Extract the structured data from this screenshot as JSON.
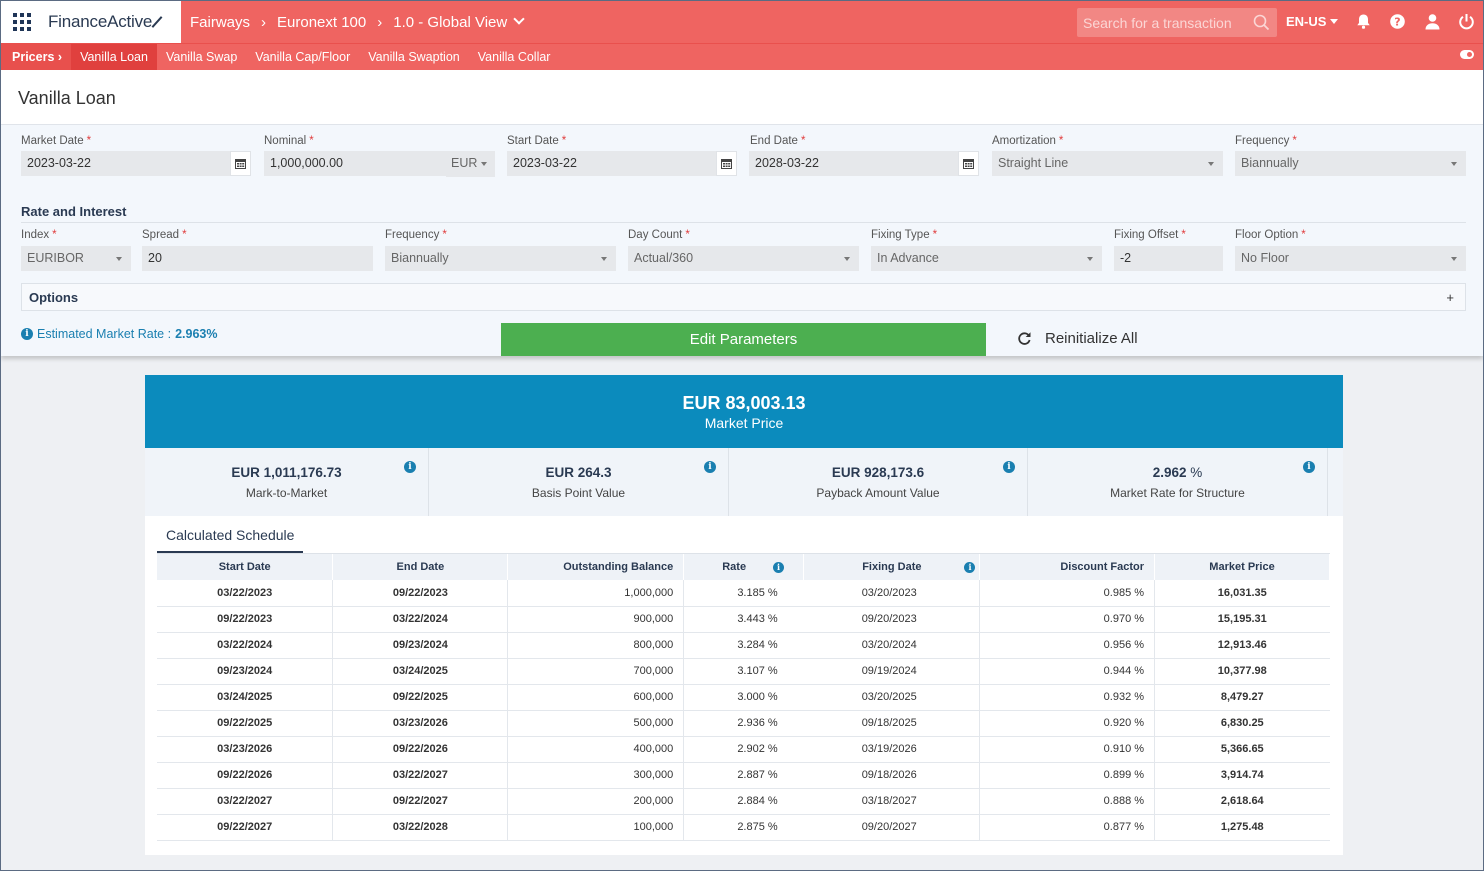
{
  "header": {
    "brand": "FinanceActive",
    "breadcrumbs": [
      "Fairways",
      "Euronext 100",
      "1.0 - Global View"
    ],
    "search_placeholder": "Search for a transaction",
    "language": "EN-US"
  },
  "subnav": {
    "section": "Pricers",
    "items": [
      "Vanilla Loan",
      "Vanilla Swap",
      "Vanilla Cap/Floor",
      "Vanilla Swaption",
      "Vanilla Collar"
    ],
    "active": "Vanilla Loan"
  },
  "page_title": "Vanilla Loan",
  "form": {
    "market_date": {
      "label": "Market Date",
      "value": "2023-03-22"
    },
    "nominal": {
      "label": "Nominal",
      "value": "1,000,000.00",
      "currency": "EUR"
    },
    "start_date": {
      "label": "Start Date",
      "value": "2023-03-22"
    },
    "end_date": {
      "label": "End Date",
      "value": "2028-03-22"
    },
    "amortization": {
      "label": "Amortization",
      "value": "Straight Line"
    },
    "frequency": {
      "label": "Frequency",
      "value": "Biannually"
    }
  },
  "rate_section": {
    "title": "Rate and Interest",
    "index": {
      "label": "Index",
      "value": "EURIBOR"
    },
    "spread": {
      "label": "Spread",
      "value": "20"
    },
    "frequency": {
      "label": "Frequency",
      "value": "Biannually"
    },
    "day_count": {
      "label": "Day Count",
      "value": "Actual/360"
    },
    "fixing_type": {
      "label": "Fixing Type",
      "value": "In Advance"
    },
    "fixing_offset": {
      "label": "Fixing Offset",
      "value": "-2"
    },
    "floor_option": {
      "label": "Floor Option",
      "value": "No Floor"
    }
  },
  "options": {
    "label": "Options",
    "toggle": "+"
  },
  "estimated_rate": {
    "label": "Estimated Market Rate :",
    "value": "2.963%"
  },
  "actions": {
    "edit": "Edit Parameters",
    "reinit": "Reinitialize All"
  },
  "results": {
    "market_price": {
      "amount": "EUR 83,003.13",
      "label": "Market Price"
    },
    "kpis": [
      {
        "value": "EUR 1,011,176.73",
        "label": "Mark-to-Market"
      },
      {
        "value": "EUR 264.3",
        "label": "Basis Point Value"
      },
      {
        "value": "EUR 928,173.6",
        "label": "Payback Amount Value"
      },
      {
        "value": "2.962",
        "unit": "%",
        "label": "Market Rate for Structure"
      }
    ],
    "schedule_tab": "Calculated Schedule",
    "columns": [
      "Start Date",
      "End Date",
      "Outstanding Balance",
      "Rate",
      "Fixing Date",
      "Discount Factor",
      "Market Price"
    ],
    "rows": [
      [
        "03/22/2023",
        "09/22/2023",
        "1,000,000",
        "3.185 %",
        "03/20/2023",
        "0.985 %",
        "16,031.35"
      ],
      [
        "09/22/2023",
        "03/22/2024",
        "900,000",
        "3.443 %",
        "09/20/2023",
        "0.970 %",
        "15,195.31"
      ],
      [
        "03/22/2024",
        "09/23/2024",
        "800,000",
        "3.284 %",
        "03/20/2024",
        "0.956 %",
        "12,913.46"
      ],
      [
        "09/23/2024",
        "03/24/2025",
        "700,000",
        "3.107 %",
        "09/19/2024",
        "0.944 %",
        "10,377.98"
      ],
      [
        "03/24/2025",
        "09/22/2025",
        "600,000",
        "3.000 %",
        "03/20/2025",
        "0.932 %",
        "8,479.27"
      ],
      [
        "09/22/2025",
        "03/23/2026",
        "500,000",
        "2.936 %",
        "09/18/2025",
        "0.920 %",
        "6,830.25"
      ],
      [
        "03/23/2026",
        "09/22/2026",
        "400,000",
        "2.902 %",
        "03/19/2026",
        "0.910 %",
        "5,366.65"
      ],
      [
        "09/22/2026",
        "03/22/2027",
        "300,000",
        "2.887 %",
        "09/18/2026",
        "0.899 %",
        "3,914.74"
      ],
      [
        "03/22/2027",
        "09/22/2027",
        "200,000",
        "2.884 %",
        "03/18/2027",
        "0.888 %",
        "2,618.64"
      ],
      [
        "09/22/2027",
        "03/22/2028",
        "100,000",
        "2.875 %",
        "09/20/2027",
        "0.877 %",
        "1,275.48"
      ]
    ]
  },
  "colors": {
    "header": "#ef6461",
    "accent": "#0b8bbd",
    "action": "#4caf50",
    "info": "#1a7fb0"
  }
}
